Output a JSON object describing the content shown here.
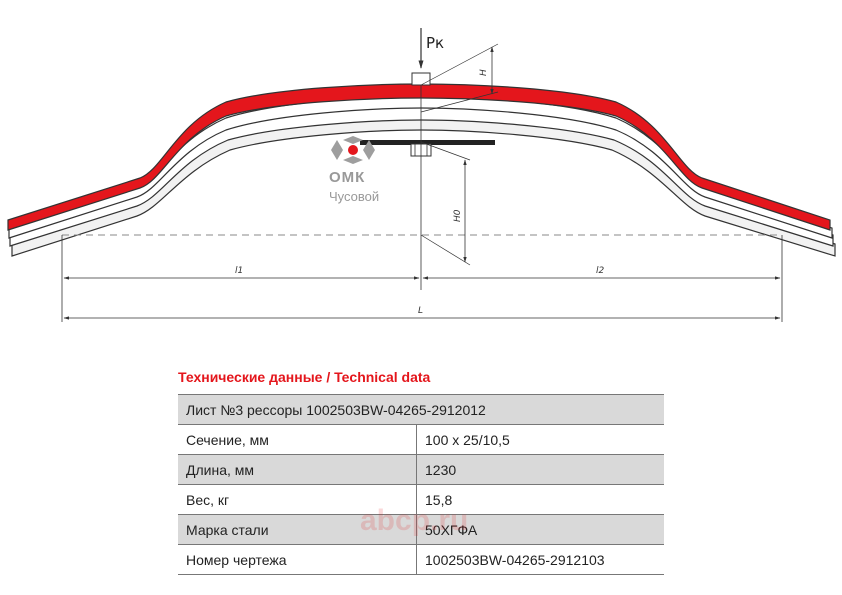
{
  "drawing": {
    "force_label": "Pк",
    "dimensions": {
      "H": "H",
      "H0": "H0",
      "l1": "l1",
      "l2": "l2",
      "L": "L"
    },
    "logo": {
      "name": "ОМК",
      "city": "Чусовой"
    },
    "colors": {
      "highlighted_leaf": "#e4161c",
      "outline": "#333333",
      "logo_gray": "#9e9e9e"
    }
  },
  "table": {
    "title": "Технические данные / Technical data",
    "header": "Лист №3 рессоры 1002503BW-04265-2912012",
    "rows": [
      {
        "label": "Сечение, мм",
        "value": "100 х 25/10,5"
      },
      {
        "label": "Длина, мм",
        "value": "1230"
      },
      {
        "label": "Вес, кг",
        "value": "15,8"
      },
      {
        "label": "Марка стали",
        "value": "50ХГФА"
      },
      {
        "label": "Номер чертежа",
        "value": "1002503BW-04265-2912103"
      }
    ]
  },
  "watermark": {
    "text": "abcp.ru"
  }
}
